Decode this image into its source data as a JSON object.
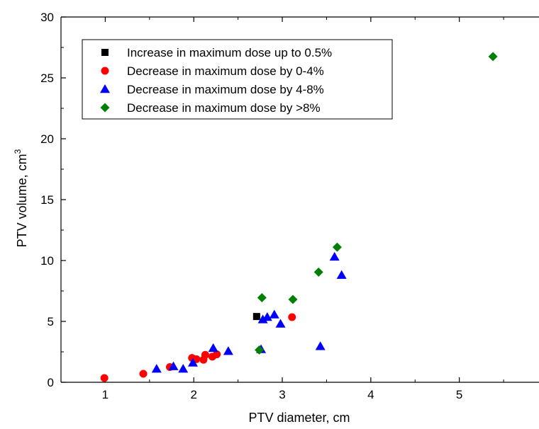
{
  "chart_data": {
    "type": "scatter",
    "xlabel": "PTV diameter, cm",
    "ylabel_main": "PTV volume, cm",
    "ylabel_sup": "3",
    "xlim": [
      0.5,
      5.9
    ],
    "ylim": [
      0,
      30
    ],
    "x_ticks": [
      1,
      2,
      3,
      4,
      5
    ],
    "y_ticks": [
      0,
      5,
      10,
      15,
      20,
      25,
      30
    ],
    "grid": false,
    "legend_position": "top-left",
    "series": [
      {
        "name": "Increase in maximum dose up to 0.5%",
        "marker": "square",
        "color": "#000000",
        "points": [
          [
            2.71,
            5.4
          ]
        ]
      },
      {
        "name": "Decrease in maximum dose by 0-4%",
        "marker": "circle",
        "color": "#ff0000",
        "points": [
          [
            0.99,
            0.35
          ],
          [
            1.43,
            0.7
          ],
          [
            1.73,
            1.25
          ],
          [
            1.98,
            2.0
          ],
          [
            2.03,
            1.9
          ],
          [
            2.11,
            1.85
          ],
          [
            2.13,
            2.25
          ],
          [
            2.21,
            2.1
          ],
          [
            2.26,
            2.3
          ],
          [
            3.11,
            5.35
          ]
        ]
      },
      {
        "name": "Decrease in maximum dose by 4-8%",
        "marker": "triangle",
        "color": "#0000ff",
        "points": [
          [
            1.58,
            1.1
          ],
          [
            1.77,
            1.3
          ],
          [
            1.88,
            1.1
          ],
          [
            1.99,
            1.6
          ],
          [
            2.22,
            2.8
          ],
          [
            2.39,
            2.55
          ],
          [
            2.76,
            2.7
          ],
          [
            2.78,
            5.15
          ],
          [
            2.83,
            5.35
          ],
          [
            2.91,
            5.55
          ],
          [
            2.98,
            4.8
          ],
          [
            3.43,
            2.95
          ],
          [
            3.59,
            10.3
          ],
          [
            3.67,
            8.8
          ]
        ]
      },
      {
        "name": "Decrease in maximum dose by >8%",
        "marker": "diamond",
        "color": "#008000",
        "points": [
          [
            2.74,
            2.65
          ],
          [
            2.77,
            6.95
          ],
          [
            3.12,
            6.8
          ],
          [
            3.41,
            9.05
          ],
          [
            3.62,
            11.1
          ],
          [
            5.38,
            26.75
          ]
        ]
      }
    ]
  }
}
